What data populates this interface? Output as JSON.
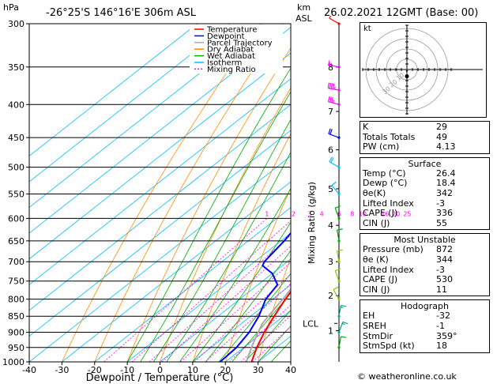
{
  "header": {
    "hpa_label": "hPa",
    "location": "-26°25'S  146°16'E  306m  ASL",
    "km_label": "km",
    "asl_label": "ASL",
    "datetime": "26.02.2021  12GMT  (Base: 00)"
  },
  "legend": [
    {
      "name": "Temperature",
      "color": "#ff0000",
      "dash": "solid"
    },
    {
      "name": "Dewpoint",
      "color": "#0000ff",
      "dash": "solid"
    },
    {
      "name": "Parcel Trajectory",
      "color": "#aaaaaa",
      "dash": "solid"
    },
    {
      "name": "Dry Adiabat",
      "color": "#ff8c00",
      "dash": "solid"
    },
    {
      "name": "Wet Adiabat",
      "color": "#00aa00",
      "dash": "solid"
    },
    {
      "name": "Isotherm",
      "color": "#00bfff",
      "dash": "solid"
    },
    {
      "name": "Mixing Ratio",
      "color": "#ff00ff",
      "dash": "dotted"
    }
  ],
  "chart_data": {
    "type": "line",
    "xlabel": "Dewpoint / Temperature (°C)",
    "ylabel": "hPa",
    "right_label": "Mixing Ratio (g/kg)",
    "xlim": [
      -40,
      40
    ],
    "ylim": [
      1000,
      300
    ],
    "x_ticks": [
      "-40",
      "-30",
      "-20",
      "-10",
      "0",
      "10",
      "20",
      "30",
      "40"
    ],
    "pressure_levels": [
      "300",
      "350",
      "400",
      "450",
      "500",
      "550",
      "600",
      "650",
      "700",
      "750",
      "800",
      "850",
      "900",
      "950",
      "1000"
    ],
    "km_ticks": [
      {
        "km": "8",
        "p": 350
      },
      {
        "km": "7",
        "p": 410
      },
      {
        "km": "6",
        "p": 470
      },
      {
        "km": "5",
        "p": 540
      },
      {
        "km": "4",
        "p": 615
      },
      {
        "km": "3",
        "p": 700
      },
      {
        "km": "2",
        "p": 790
      },
      {
        "km": "1",
        "p": 895
      }
    ],
    "lcl_label": "LCL",
    "lcl_p": 872,
    "mixing_ratio_labels": [
      "1",
      "2",
      "3",
      "4",
      "6",
      "8",
      "10",
      "16",
      "20",
      "25"
    ],
    "series": [
      {
        "name": "Temperature",
        "color": "#ff0000",
        "points": [
          [
            1000,
            28.0
          ],
          [
            950,
            24.0
          ],
          [
            900,
            20.4
          ],
          [
            850,
            17.2
          ],
          [
            800,
            14.0
          ],
          [
            750,
            11.0
          ],
          [
            700,
            8.0
          ],
          [
            650,
            4.4
          ],
          [
            600,
            0.8
          ],
          [
            550,
            -3.4
          ],
          [
            500,
            -8.0
          ],
          [
            450,
            -13.4
          ],
          [
            400,
            -19.4
          ],
          [
            350,
            -26.0
          ],
          [
            300,
            -33.0
          ]
        ]
      },
      {
        "name": "Dewpoint",
        "color": "#0000ff",
        "points": [
          [
            1000,
            18.4
          ],
          [
            950,
            17.8
          ],
          [
            900,
            15.8
          ],
          [
            850,
            12.5
          ],
          [
            800,
            8.0
          ],
          [
            760,
            6.0
          ],
          [
            730,
            0.0
          ],
          [
            710,
            -6.0
          ],
          [
            700,
            -7.0
          ],
          [
            650,
            -9.0
          ],
          [
            600,
            -12.0
          ],
          [
            550,
            -16.0
          ],
          [
            500,
            -21.0
          ],
          [
            470,
            -26.0
          ],
          [
            450,
            -30.0
          ],
          [
            430,
            -29.0
          ],
          [
            420,
            -34.0
          ],
          [
            410,
            -31.0
          ],
          [
            400,
            -32.0
          ],
          [
            380,
            -36.0
          ],
          [
            350,
            -38.0
          ],
          [
            330,
            -42.0
          ],
          [
            300,
            -48.0
          ]
        ]
      },
      {
        "name": "Parcel Trajectory",
        "color": "#aaaaaa",
        "points": [
          [
            1000,
            26.4
          ],
          [
            950,
            22.4
          ],
          [
            900,
            18.5
          ],
          [
            872,
            16.4
          ],
          [
            850,
            15.4
          ],
          [
            800,
            13.2
          ],
          [
            750,
            10.6
          ],
          [
            700,
            7.6
          ],
          [
            650,
            4.4
          ],
          [
            600,
            1.0
          ],
          [
            550,
            -3.0
          ],
          [
            500,
            -7.8
          ],
          [
            450,
            -13.4
          ],
          [
            400,
            -20.0
          ],
          [
            350,
            -27.6
          ],
          [
            300,
            -36.6
          ]
        ]
      }
    ],
    "winds": [
      {
        "p": 300,
        "dir": 300,
        "spd": 5,
        "color": "#ff0000"
      },
      {
        "p": 350,
        "dir": 280,
        "spd": 55,
        "color": "#ff00ff"
      },
      {
        "p": 380,
        "dir": 280,
        "spd": 45,
        "color": "#ff00ff"
      },
      {
        "p": 400,
        "dir": 285,
        "spd": 35,
        "color": "#ff00ff"
      },
      {
        "p": 450,
        "dir": 290,
        "spd": 20,
        "color": "#0000ff"
      },
      {
        "p": 500,
        "dir": 300,
        "spd": 20,
        "color": "#00bfff"
      },
      {
        "p": 550,
        "dir": 320,
        "spd": 10,
        "color": "#00bfff"
      },
      {
        "p": 600,
        "dir": 340,
        "spd": 10,
        "color": "#00aa00"
      },
      {
        "p": 650,
        "dir": 350,
        "spd": 10,
        "color": "#00aa00"
      },
      {
        "p": 700,
        "dir": 350,
        "spd": 10,
        "color": "#88cc00"
      },
      {
        "p": 750,
        "dir": 340,
        "spd": 10,
        "color": "#88cc00"
      },
      {
        "p": 800,
        "dir": 330,
        "spd": 10,
        "color": "#88cc00"
      },
      {
        "p": 850,
        "dir": 10,
        "spd": 15,
        "color": "#00aa88"
      },
      {
        "p": 900,
        "dir": 20,
        "spd": 15,
        "color": "#00aa88"
      },
      {
        "p": 950,
        "dir": 10,
        "spd": 10,
        "color": "#00aa00"
      }
    ]
  },
  "hodograph": {
    "label": "kt",
    "ring_labels": [
      "10",
      "20",
      "30"
    ],
    "path": [
      [
        0.0,
        -2.5
      ],
      [
        -0.5,
        -1.5
      ],
      [
        0.4,
        -1.2
      ],
      [
        -0.2,
        -0.6
      ]
    ],
    "storm_motion": [
      0.0,
      -2.0
    ]
  },
  "indices": [
    {
      "label": "K",
      "value": "29"
    },
    {
      "label": "Totals Totals",
      "value": "49"
    },
    {
      "label": "PW (cm)",
      "value": "4.13"
    }
  ],
  "surface": {
    "title": "Surface",
    "rows": [
      {
        "label": "Temp (°C)",
        "value": "26.4"
      },
      {
        "label": "Dewp (°C)",
        "value": "18.4"
      },
      {
        "label": "θe(K)",
        "value": "342"
      },
      {
        "label": "Lifted Index",
        "value": "-3"
      },
      {
        "label": "CAPE (J)",
        "value": "336"
      },
      {
        "label": "CIN (J)",
        "value": "55"
      }
    ]
  },
  "most_unstable": {
    "title": "Most Unstable",
    "rows": [
      {
        "label": "Pressure (mb)",
        "value": "872"
      },
      {
        "label": "θe (K)",
        "value": "344"
      },
      {
        "label": "Lifted Index",
        "value": "-3"
      },
      {
        "label": "CAPE (J)",
        "value": "530"
      },
      {
        "label": "CIN (J)",
        "value": "11"
      }
    ]
  },
  "hodograph_table": {
    "title": "Hodograph",
    "rows": [
      {
        "label": "EH",
        "value": "-32"
      },
      {
        "label": "SREH",
        "value": "-1"
      },
      {
        "label": "StmDir",
        "value": "359°"
      },
      {
        "label": "StmSpd (kt)",
        "value": "18"
      }
    ]
  },
  "copyright": "© weatheronline.co.uk"
}
